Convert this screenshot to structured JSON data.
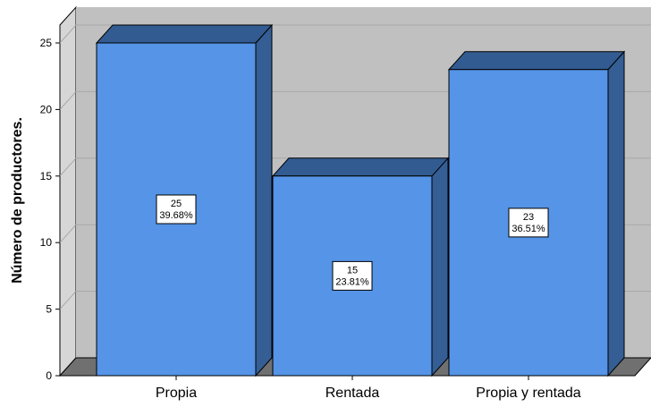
{
  "chart_data": {
    "type": "bar",
    "style": "3d",
    "categories": [
      "Propia",
      "Rentada",
      "Propia y rentada"
    ],
    "values": [
      25,
      15,
      23
    ],
    "percent_labels": [
      "39.68%",
      "23.81%",
      "36.51%"
    ],
    "value_labels": [
      "25",
      "15",
      "23"
    ],
    "ylabel": "Número de productores.",
    "xlabel": "",
    "ylim": [
      0,
      25
    ],
    "yticks": [
      "0",
      "5",
      "10",
      "15",
      "20",
      "25"
    ],
    "grid": true,
    "legend": "none"
  },
  "colors": {
    "bar_front": "#5594e6",
    "bar_side": "#345e94",
    "bar_top": "#325c91",
    "back_wall": "#c0c0c0",
    "side_wall": "#d6d6d6",
    "floor": "#707070",
    "gridline": "#a8a8a8"
  }
}
